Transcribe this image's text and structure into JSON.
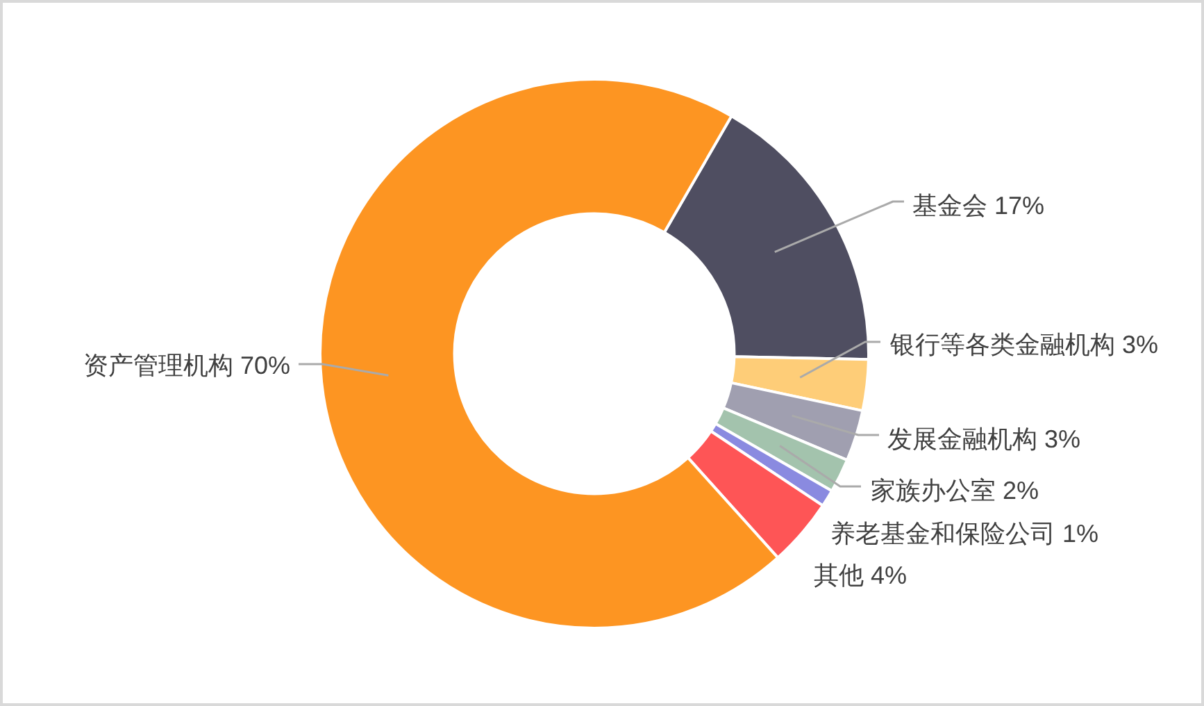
{
  "chart_data": {
    "type": "donut",
    "categories": [
      "基金会",
      "银行等各类金融机构",
      "发展金融机构",
      "家族办公室",
      "养老基金和保险公司",
      "其他",
      "资产管理机构"
    ],
    "values": [
      17,
      3,
      3,
      2,
      1,
      4,
      70
    ],
    "colors": [
      "#4f4e61",
      "#fecd78",
      "#a09fb0",
      "#a3c3ad",
      "#8a8ae0",
      "#fe5556",
      "#fd9522"
    ],
    "value_labels": [
      "17%",
      "3%",
      "3%",
      "2%",
      "1%",
      "4%",
      "70%"
    ]
  }
}
